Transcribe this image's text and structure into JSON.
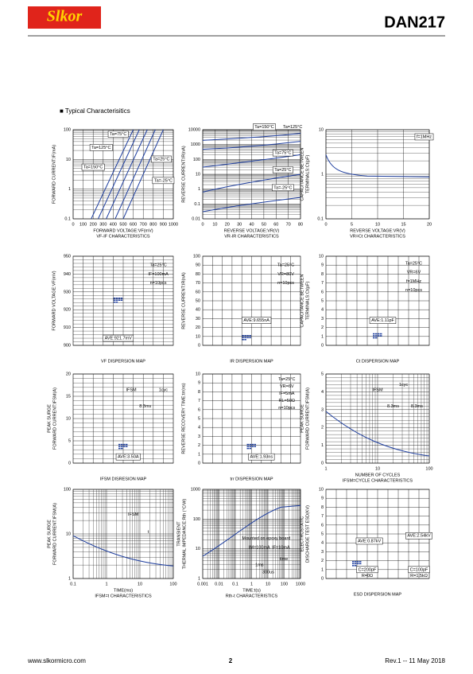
{
  "header": {
    "logo": "Slkor",
    "title": "DAN217"
  },
  "section": "■ Typical Characterisitics",
  "panels": [
    {
      "ylabel": [
        "FORWARD CURRENT:IF(mA)"
      ],
      "yticks": [
        "100",
        "10",
        "1",
        "0.1"
      ],
      "xticks": [
        "0",
        "100",
        "200",
        "300",
        "400",
        "500",
        "600",
        "700",
        "800",
        "900",
        "1000"
      ],
      "xlabel": "FORWARD VOLTAGE:VF(mV)",
      "caption": "VF-IF CHARACTERISTICS",
      "notes": [
        "Ta=75°C",
        "Ta=125°C",
        "Ta=150°C",
        "Ta=25°C",
        "Ta=-25°C"
      ]
    },
    {
      "ylabel": [
        "REVERSE CURRENT:IR(nA)"
      ],
      "yticks": [
        "10000",
        "1000",
        "100",
        "10",
        "1",
        "0.1",
        "0.01"
      ],
      "xticks": [
        "0",
        "10",
        "20",
        "30",
        "40",
        "50",
        "60",
        "70",
        "80"
      ],
      "xlabel": "REVERSE VOLTAGE:VR(V)",
      "caption": "VR-IR CHARACTERISTICS",
      "notes": [
        "Ta=150°C",
        "Ta=125°C",
        "Ta=75°C",
        "Ta=25°C",
        "Ta=-25°C"
      ]
    },
    {
      "ylabel": [
        "CAPACITANCE BETWEEN",
        "TERMINALS:Ct(pF)"
      ],
      "yticks": [
        "10",
        "1",
        "0.1"
      ],
      "xticks": [
        "0",
        "5",
        "10",
        "15",
        "20"
      ],
      "xlabel": "REVERSE VOLTAGE:VR(V)",
      "caption": "VR=Ct CHARACTERISTICS",
      "notes": [
        "f=1MHz"
      ]
    },
    {
      "ylabel": [
        "FORWARD VOLTAGE:VF(mV)"
      ],
      "yticks": [
        "950",
        "940",
        "930",
        "920",
        "910",
        "900"
      ],
      "caption": "VF DISPERSION MAP",
      "notes": [
        "Ta=25°C",
        "IF=100mA",
        "n=10pcs",
        "AVE:921.7mV"
      ]
    },
    {
      "ylabel": [
        "REVERSE CURRENT:IR(nA)"
      ],
      "yticks": [
        "100",
        "90",
        "80",
        "70",
        "60",
        "50",
        "40",
        "30",
        "20",
        "10",
        "0"
      ],
      "caption": "IR DISPERSION MAP",
      "notes": [
        "Ta=25°C",
        "VR=80V",
        "n=10pcs",
        "AVE:9.655nA"
      ]
    },
    {
      "ylabel": [
        "CAPACITANCE BETWEEN",
        "TERMINALS:Ct(pF)"
      ],
      "yticks": [
        "10",
        "9",
        "8",
        "7",
        "6",
        "5",
        "4",
        "3",
        "2",
        "1",
        "0"
      ],
      "caption": "Ct DISPERSION MAP",
      "notes": [
        "Ta=25°C",
        "VR=6V",
        "f=1MHz",
        "n=10pcs",
        "AVE:1.11pF"
      ]
    },
    {
      "ylabel": [
        "PEAK SURGE",
        "FORWARD CURRENT:IFSM(A)"
      ],
      "yticks": [
        "20",
        "15",
        "10",
        "5",
        "0"
      ],
      "caption": "IFSM DISRESION MAP",
      "notes": [
        "IFSM",
        "1cyc",
        "8.3ms",
        "AVE:3.50A"
      ]
    },
    {
      "ylabel": [
        "REVERSE RECOVERY TIME:trr(ns)"
      ],
      "yticks": [
        "10",
        "9",
        "8",
        "7",
        "6",
        "5",
        "4",
        "3",
        "2",
        "1",
        "0"
      ],
      "caption": "trr DISPERSION MAP",
      "notes": [
        "Ta=25°C",
        "VR=6V",
        "IF=5mA",
        "RL=50Ω",
        "n=10pcs",
        "AVE:1.93ns"
      ]
    },
    {
      "ylabel": [
        "PEAK SURGE",
        "FORWARD CURRENT:IFSM(A)"
      ],
      "yticks": [
        "5",
        "4",
        "3",
        "2",
        "1",
        "0"
      ],
      "xticks": [
        "1",
        "10",
        "100"
      ],
      "xlabel": "NUMBER OF CYCLES",
      "caption": "IFSM=CYCLE CHARACTERISTICS",
      "notes": [
        "IFSM",
        "8.3ms",
        "8.3ms",
        "1cyc"
      ]
    },
    {
      "ylabel": [
        "PEAK SURGE",
        "FORWARD CURRENT:IFSM(A)"
      ],
      "yticks": [
        "100",
        "10",
        "1"
      ],
      "xticks": [
        "0.1",
        "1",
        "10",
        "100"
      ],
      "xlabel": "TIME(ms)",
      "caption": "IFSM=t CHARACTERISTICS",
      "notes": [
        "IFSM",
        "t"
      ]
    },
    {
      "ylabel": [
        "TRANSIENT",
        "THERMAL IMPEDANCE:Rth (°C/W)"
      ],
      "yticks": [
        "1000",
        "100",
        "10",
        "1"
      ],
      "xticks": [
        "0.001",
        "0.01",
        "0.1",
        "1",
        "10",
        "100",
        "1000"
      ],
      "xlabel": "TIME:t(s)",
      "caption": "Rth-t CHARACTERISTICS",
      "notes": [
        "Mounted on epoxy board",
        "IM=100mA",
        "IF=10mA",
        "1ms",
        "time",
        "300us"
      ]
    },
    {
      "ylabel": [
        "ELECTROSTATIC",
        "DISCHARGE TEST ESD(KV)"
      ],
      "yticks": [
        "10",
        "9",
        "8",
        "7",
        "6",
        "5",
        "4",
        "3",
        "2",
        "1",
        "0"
      ],
      "caption": "ESD DISPERSION MAP",
      "notes": [
        "AVE:0.87kV",
        "AVE:2.54kV",
        "C=200pF",
        "R=0Ω",
        "C=100pF",
        "R=1.5kΩ"
      ]
    }
  ],
  "footer": {
    "url": "www.slkormicro.com",
    "page": "2",
    "rev": "Rev.1 -- 11 May 2018"
  }
}
